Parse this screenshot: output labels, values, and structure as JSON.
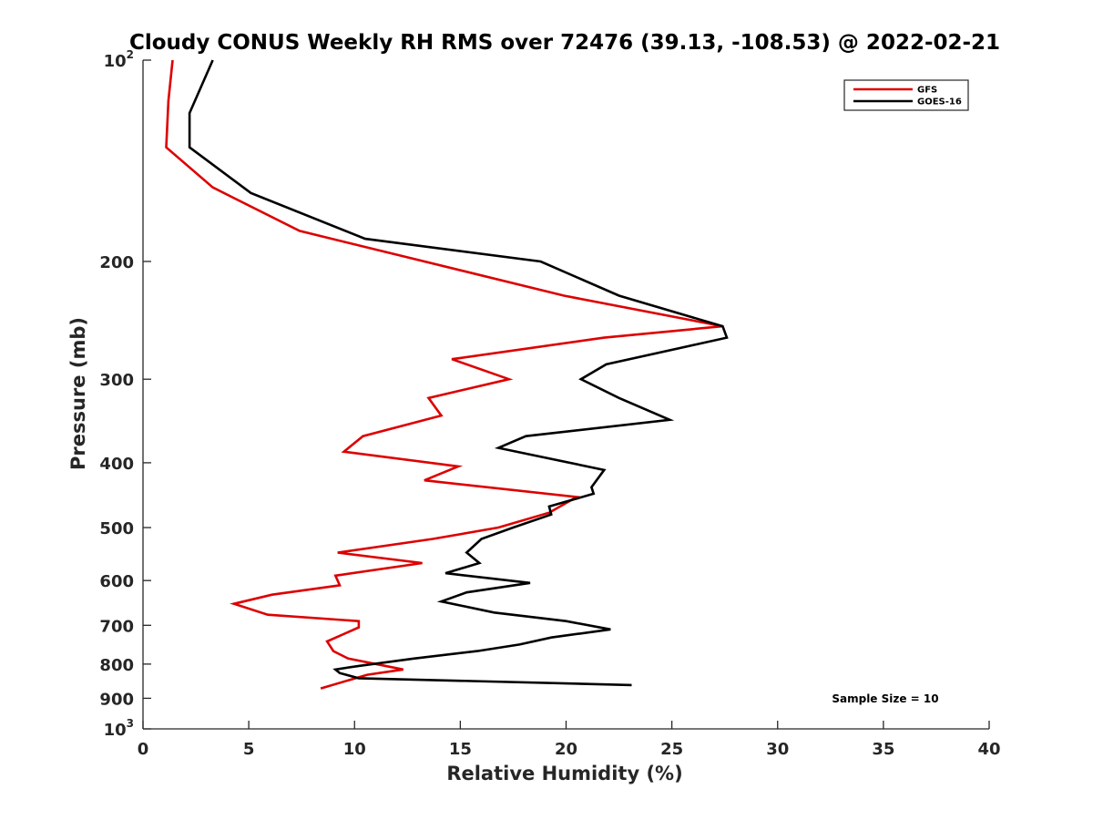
{
  "chart_data": {
    "type": "line",
    "title": "Cloudy CONUS Weekly RH RMS over 72476 (39.13, -108.53) @ 2022-02-21",
    "xlabel": "Relative Humidity (%)",
    "ylabel": "Pressure (mb)",
    "xlim": [
      0,
      40
    ],
    "ylim": [
      100,
      1000
    ],
    "yscale": "log",
    "yreversed": true,
    "x_ticks": [
      0,
      5,
      10,
      15,
      20,
      25,
      30,
      35,
      40
    ],
    "y_ticks": [
      {
        "value": 100,
        "base": "10",
        "exp": "2"
      },
      {
        "value": 200,
        "label": "200"
      },
      {
        "value": 300,
        "label": "300"
      },
      {
        "value": 400,
        "label": "400"
      },
      {
        "value": 500,
        "label": "500"
      },
      {
        "value": 600,
        "label": "600"
      },
      {
        "value": 700,
        "label": "700"
      },
      {
        "value": 800,
        "label": "800"
      },
      {
        "value": 900,
        "label": "900"
      },
      {
        "value": 1000,
        "base": "10",
        "exp": "3"
      }
    ],
    "legend_position": "top-right",
    "grid": false,
    "annotation": "Sample Size = 10",
    "series": [
      {
        "name": "GFS",
        "color": "#dd0000",
        "points": [
          [
            1.4,
            100
          ],
          [
            1.2,
            115
          ],
          [
            1.1,
            135
          ],
          [
            3.3,
            155
          ],
          [
            7.4,
            180
          ],
          [
            19.9,
            225
          ],
          [
            27.4,
            250
          ],
          [
            21.8,
            260
          ],
          [
            14.6,
            280
          ],
          [
            17.3,
            300
          ],
          [
            13.5,
            320
          ],
          [
            14.1,
            340
          ],
          [
            10.4,
            365
          ],
          [
            9.5,
            385
          ],
          [
            14.9,
            405
          ],
          [
            13.3,
            425
          ],
          [
            20.5,
            450
          ],
          [
            19.2,
            475
          ],
          [
            16.8,
            500
          ],
          [
            13.7,
            520
          ],
          [
            9.2,
            545
          ],
          [
            13.2,
            565
          ],
          [
            9.1,
            590
          ],
          [
            9.3,
            610
          ],
          [
            6.1,
            630
          ],
          [
            4.3,
            650
          ],
          [
            5.9,
            675
          ],
          [
            10.2,
            690
          ],
          [
            10.2,
            705
          ],
          [
            8.7,
            740
          ],
          [
            9.0,
            765
          ],
          [
            9.7,
            785
          ],
          [
            12.3,
            815
          ],
          [
            10.6,
            830
          ],
          [
            8.4,
            870
          ]
        ]
      },
      {
        "name": "GOES-16",
        "color": "#000000",
        "points": [
          [
            3.3,
            100
          ],
          [
            2.2,
            120
          ],
          [
            2.2,
            135
          ],
          [
            5.1,
            158
          ],
          [
            10.5,
            185
          ],
          [
            18.8,
            200
          ],
          [
            22.5,
            225
          ],
          [
            27.4,
            250
          ],
          [
            27.6,
            260
          ],
          [
            21.9,
            285
          ],
          [
            20.7,
            300
          ],
          [
            22.5,
            320
          ],
          [
            24.9,
            345
          ],
          [
            18.1,
            365
          ],
          [
            16.8,
            380
          ],
          [
            21.8,
            410
          ],
          [
            21.2,
            435
          ],
          [
            21.3,
            445
          ],
          [
            19.2,
            465
          ],
          [
            19.3,
            478
          ],
          [
            17.5,
            500
          ],
          [
            16.0,
            520
          ],
          [
            15.3,
            545
          ],
          [
            15.9,
            565
          ],
          [
            14.3,
            585
          ],
          [
            18.3,
            605
          ],
          [
            15.3,
            625
          ],
          [
            14.1,
            645
          ],
          [
            16.6,
            670
          ],
          [
            20.0,
            690
          ],
          [
            22.1,
            710
          ],
          [
            19.3,
            730
          ],
          [
            17.8,
            748
          ],
          [
            15.8,
            765
          ],
          [
            12.8,
            785
          ],
          [
            10.2,
            805
          ],
          [
            9.1,
            815
          ],
          [
            9.3,
            825
          ],
          [
            10.2,
            840
          ],
          [
            23.1,
            860
          ]
        ]
      }
    ]
  }
}
